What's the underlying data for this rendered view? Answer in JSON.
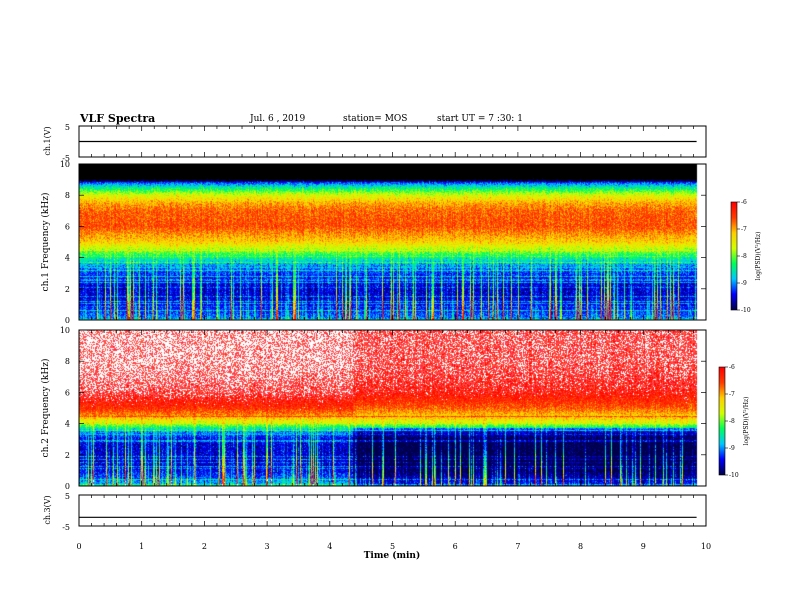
{
  "header": {
    "title": "VLF Spectra",
    "date": "Jul. 6 , 2019",
    "station": "station= MOS",
    "start": "start UT = 7 :30: 1"
  },
  "colors": {
    "background": "#ffffff",
    "frame": "#000000",
    "spectrogram_floor": "#000000",
    "colormap": [
      "#00004a",
      "#0000ff",
      "#00c8ff",
      "#00ff5a",
      "#d2ff00",
      "#ffd000",
      "#ff3c00",
      "#ff0000",
      "#ffffff"
    ]
  },
  "chart_data": [
    {
      "type": "line",
      "panel": "ch.1 waveform",
      "ylabel": "ch.1(V)",
      "yticks": [
        "5",
        "-5"
      ],
      "ylim": [
        -5,
        5
      ],
      "xlim": [
        0,
        10
      ],
      "series": [
        {
          "x": [
            0,
            9.85
          ],
          "y": [
            0,
            0
          ]
        }
      ]
    },
    {
      "type": "heatmap",
      "panel": "ch.1 spectrogram",
      "ylabel": "ch.1  Frequency (kHz)",
      "ylim": [
        0,
        10
      ],
      "yticks": [
        "0",
        "2",
        "4",
        "6",
        "8",
        "10"
      ],
      "xlim": [
        0,
        10
      ],
      "data_xmax": 9.85,
      "colorbar": {
        "label": "log(PSD)(V²/Hz)",
        "range": [
          -10,
          -6
        ],
        "ticks": [
          "-6",
          "-7",
          "-8",
          "-9",
          "-10"
        ]
      },
      "profile": {
        "freq_khz": [
          0,
          0.5,
          1,
          1.5,
          2,
          2.5,
          3,
          3.5,
          4,
          4.5,
          5,
          6,
          7,
          7.5,
          8,
          8.5,
          8.8,
          9.0,
          9.2,
          10
        ],
        "log_psd": [
          -9.0,
          -9.3,
          -9.5,
          -9.6,
          -9.6,
          -9.5,
          -9.3,
          -9.0,
          -8.5,
          -7.8,
          -7.2,
          -6.6,
          -6.7,
          -7.0,
          -7.6,
          -8.5,
          -9.2,
          -10.5,
          -11,
          -11
        ]
      }
    },
    {
      "type": "heatmap",
      "panel": "ch.2 spectrogram",
      "ylabel": "ch.2  Frequency (kHz)",
      "ylim": [
        0,
        10
      ],
      "yticks": [
        "0",
        "2",
        "4",
        "6",
        "8",
        "10"
      ],
      "xlim": [
        0,
        10
      ],
      "data_xmax": 9.85,
      "colorbar": {
        "label": "log(PSD)(V²/Hz)",
        "range": [
          -10,
          -6
        ],
        "ticks": [
          "-6",
          "-7",
          "-8",
          "-9",
          "-10"
        ]
      },
      "profile": {
        "freq_khz": [
          0,
          0.5,
          1,
          1.5,
          2,
          2.5,
          3,
          3.5,
          4,
          4.5,
          5,
          6,
          7,
          8,
          9,
          10
        ],
        "log_psd": [
          -8.8,
          -9.2,
          -9.5,
          -9.6,
          -9.6,
          -9.6,
          -9.5,
          -9.0,
          -7.8,
          -6.9,
          -6.4,
          -5.8,
          -5.6,
          -5.5,
          -5.5,
          -5.5
        ]
      },
      "regime_change_min": 4.35
    },
    {
      "type": "line",
      "panel": "ch.3 waveform",
      "ylabel": "ch.3(V)",
      "yticks": [
        "5",
        "-5"
      ],
      "ylim": [
        -5,
        5
      ],
      "xlim": [
        0,
        10
      ],
      "series": [
        {
          "x": [
            0,
            9.85
          ],
          "y": [
            -2.2,
            -2.2
          ]
        }
      ]
    }
  ],
  "x_axis": {
    "label": "Time (min)",
    "ticks": [
      "0",
      "1",
      "2",
      "3",
      "4",
      "5",
      "6",
      "7",
      "8",
      "9",
      "10"
    ]
  }
}
